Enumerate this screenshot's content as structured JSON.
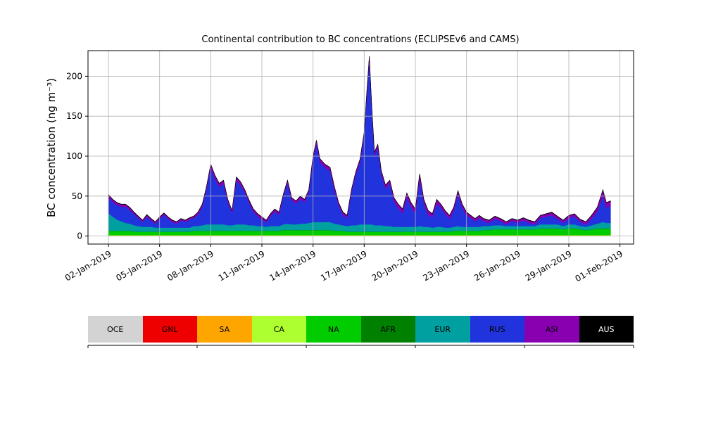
{
  "chart_data": {
    "type": "area",
    "stacked": true,
    "title": "Continental contribution to BC concentrations (ECLIPSEv6 and CAMS)",
    "xlabel": "",
    "ylabel": "BC concentration (ng m⁻³)",
    "xlim": [
      0.8,
      32.8
    ],
    "ylim": [
      -10,
      232
    ],
    "grid": true,
    "yticks": [
      0,
      50,
      100,
      150,
      200
    ],
    "xticks": [
      {
        "pos": 2,
        "label": "02-Jan-2019"
      },
      {
        "pos": 5,
        "label": "05-Jan-2019"
      },
      {
        "pos": 8,
        "label": "08-Jan-2019"
      },
      {
        "pos": 11,
        "label": "11-Jan-2019"
      },
      {
        "pos": 14,
        "label": "14-Jan-2019"
      },
      {
        "pos": 17,
        "label": "17-Jan-2019"
      },
      {
        "pos": 20,
        "label": "20-Jan-2019"
      },
      {
        "pos": 23,
        "label": "23-Jan-2019"
      },
      {
        "pos": 26,
        "label": "26-Jan-2019"
      },
      {
        "pos": 29,
        "label": "29-Jan-2019"
      },
      {
        "pos": 32,
        "label": "01-Feb-2019"
      }
    ],
    "x": [
      2.0,
      2.25,
      2.5,
      2.75,
      3.0,
      3.25,
      3.5,
      3.75,
      4.0,
      4.25,
      4.5,
      4.75,
      5.0,
      5.25,
      5.5,
      5.75,
      6.0,
      6.25,
      6.5,
      6.75,
      7.0,
      7.25,
      7.5,
      7.75,
      8.0,
      8.25,
      8.5,
      8.75,
      9.0,
      9.25,
      9.5,
      9.75,
      10.0,
      10.25,
      10.5,
      10.75,
      11.0,
      11.25,
      11.5,
      11.75,
      12.0,
      12.25,
      12.5,
      12.75,
      13.0,
      13.25,
      13.5,
      13.75,
      14.0,
      14.2,
      14.4,
      14.7,
      15.0,
      15.25,
      15.5,
      15.75,
      16.0,
      16.25,
      16.5,
      16.75,
      17.0,
      17.15,
      17.3,
      17.45,
      17.6,
      17.8,
      18.0,
      18.25,
      18.5,
      18.75,
      19.0,
      19.25,
      19.5,
      19.75,
      20.0,
      20.25,
      20.5,
      20.75,
      21.0,
      21.25,
      21.5,
      21.75,
      22.0,
      22.25,
      22.5,
      22.75,
      23.0,
      23.25,
      23.5,
      23.75,
      24.0,
      24.33,
      24.67,
      25.0,
      25.33,
      25.67,
      26.0,
      26.33,
      26.67,
      27.0,
      27.33,
      27.67,
      28.0,
      28.33,
      28.67,
      29.0,
      29.33,
      29.67,
      30.0,
      30.33,
      30.67,
      31.0,
      31.2,
      31.45
    ],
    "series": [
      {
        "name": "OCE",
        "color": "#d3d3d3",
        "value": 0.4
      },
      {
        "name": "GNL",
        "color": "#ee0000",
        "value": 0.0
      },
      {
        "name": "SA",
        "color": "#ffa500",
        "value": 0.3
      },
      {
        "name": "CA",
        "color": "#adff2f",
        "value": 0.6
      },
      {
        "name": "NA",
        "color": "#00cc00",
        "values": [
          5,
          5,
          5,
          5,
          5,
          5,
          4,
          4,
          4,
          4,
          4,
          4,
          4,
          4,
          4,
          4,
          4,
          4,
          4,
          4,
          5,
          5,
          5,
          5,
          5,
          5,
          5,
          5,
          5,
          5,
          5,
          5,
          5,
          5,
          5,
          5,
          5,
          5,
          5,
          5,
          5,
          6,
          6,
          6,
          6,
          6,
          6,
          6,
          6,
          6,
          6,
          6,
          6,
          5,
          5,
          5,
          4,
          4,
          4,
          4,
          4,
          4,
          4,
          4,
          4,
          4,
          4,
          4,
          4,
          4,
          4,
          4,
          4,
          4,
          4,
          4,
          4,
          4,
          4,
          4,
          4,
          4,
          4,
          5,
          5,
          5,
          5,
          5,
          5,
          5,
          6,
          6,
          7,
          7,
          7,
          7,
          7,
          7,
          7,
          7,
          8,
          8,
          8,
          8,
          7,
          8,
          8,
          7,
          6,
          7,
          8,
          8,
          8,
          8
        ]
      },
      {
        "name": "AFR",
        "color": "#008000",
        "value": 0.3
      },
      {
        "name": "EUR",
        "color": "#00a0a0",
        "values": [
          22,
          18,
          14,
          12,
          10,
          9,
          8,
          7,
          6,
          6,
          6,
          5,
          5,
          5,
          5,
          5,
          5,
          5,
          5,
          5,
          6,
          6,
          7,
          8,
          8,
          8,
          8,
          8,
          7,
          7,
          8,
          8,
          8,
          7,
          7,
          6,
          6,
          5,
          6,
          6,
          6,
          7,
          8,
          7,
          7,
          8,
          8,
          9,
          10,
          10,
          10,
          10,
          10,
          9,
          8,
          7,
          7,
          8,
          8,
          9,
          9,
          9,
          9,
          9,
          8,
          8,
          8,
          7,
          7,
          6,
          6,
          6,
          6,
          6,
          6,
          7,
          6,
          6,
          5,
          6,
          6,
          5,
          5,
          5,
          6,
          5,
          5,
          5,
          5,
          5,
          5,
          5,
          5,
          5,
          4,
          4,
          4,
          4,
          4,
          4,
          5,
          5,
          5,
          5,
          4,
          5,
          5,
          4,
          4,
          5,
          6,
          8,
          7,
          7
        ]
      },
      {
        "name": "RUS",
        "color": "#2033dd",
        "values": [
          20,
          18,
          18,
          18,
          20,
          17,
          14,
          10,
          6,
          13,
          8,
          5,
          11,
          16,
          11,
          7,
          5,
          9,
          7,
          10,
          10,
          14,
          23,
          44,
          71,
          57,
          47,
          51,
          29,
          15,
          55,
          49,
          40,
          28,
          17,
          12,
          8,
          6,
          12,
          18,
          14,
          34,
          51,
          30,
          26,
          31,
          27,
          38,
          78,
          98,
          75,
          68,
          64,
          42,
          24,
          13,
          10,
          41,
          63,
          77,
          111,
          161,
          206,
          141,
          87,
          97,
          64,
          47,
          53,
          32,
          23,
          17,
          37,
          25,
          17,
          59,
          29,
          15,
          13,
          29,
          24,
          17,
          11,
          20,
          40,
          24,
          14,
          11,
          7,
          11,
          6,
          4,
          8,
          5,
          2,
          6,
          4,
          7,
          4,
          2,
          8,
          10,
          11,
          7,
          4,
          8,
          10,
          5,
          3,
          8,
          15,
          33,
          19,
          21
        ]
      },
      {
        "name": "ASI",
        "color": "#8800b0",
        "values": [
          3,
          3,
          3,
          3,
          3,
          3,
          2,
          2,
          2,
          2,
          2,
          2,
          2,
          2,
          2,
          2,
          2,
          2,
          2,
          2,
          2,
          3,
          3,
          3,
          4,
          4,
          4,
          4,
          3,
          3,
          4,
          4,
          3,
          3,
          3,
          3,
          3,
          2,
          3,
          3,
          3,
          3,
          3,
          3,
          3,
          3,
          3,
          3,
          4,
          4,
          4,
          4,
          4,
          4,
          3,
          3,
          3,
          3,
          3,
          4,
          4,
          4,
          4,
          4,
          4,
          4,
          4,
          4,
          4,
          4,
          5,
          5,
          5,
          5,
          5,
          6,
          5,
          5,
          4,
          5,
          4,
          4,
          4,
          4,
          4,
          4,
          4,
          3,
          3,
          3,
          3,
          3,
          3,
          3,
          3,
          3,
          3,
          3,
          3,
          3,
          3,
          3,
          4,
          3,
          3,
          3,
          3,
          3,
          3,
          4,
          5,
          7,
          6,
          6
        ]
      },
      {
        "name": "AUS",
        "color": "#000000",
        "value": 0.4
      }
    ],
    "legend": {
      "position": "bottom",
      "items": [
        {
          "label": "OCE",
          "color": "#d3d3d3",
          "text_color": "#000000"
        },
        {
          "label": "GNL",
          "color": "#ee0000",
          "text_color": "#000000"
        },
        {
          "label": "SA",
          "color": "#ffa500",
          "text_color": "#000000"
        },
        {
          "label": "CA",
          "color": "#adff2f",
          "text_color": "#000000"
        },
        {
          "label": "NA",
          "color": "#00cc00",
          "text_color": "#000000"
        },
        {
          "label": "AFR",
          "color": "#008000",
          "text_color": "#000000"
        },
        {
          "label": "EUR",
          "color": "#00a0a0",
          "text_color": "#000000"
        },
        {
          "label": "RUS",
          "color": "#2033dd",
          "text_color": "#000000"
        },
        {
          "label": "ASI",
          "color": "#8800b0",
          "text_color": "#000000"
        },
        {
          "label": "AUS",
          "color": "#000000",
          "text_color": "#ffffff"
        }
      ]
    }
  }
}
